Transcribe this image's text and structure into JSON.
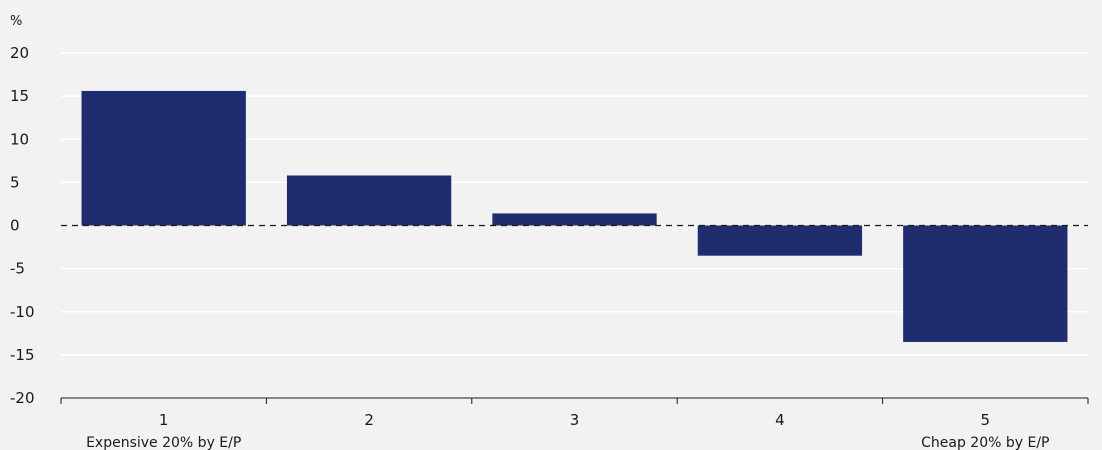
{
  "chart_data": {
    "type": "bar",
    "unit_label": "%",
    "categories": [
      "1",
      "2",
      "3",
      "4",
      "5"
    ],
    "values": [
      15.6,
      5.8,
      1.4,
      -3.5,
      -13.5
    ],
    "ylim": [
      -20,
      20
    ],
    "yticks": [
      20,
      15,
      10,
      5,
      0,
      -5,
      -10,
      -15,
      -20
    ],
    "grid": true,
    "zero_line": "dashed",
    "bar_color": "#1f2d6e",
    "category_notes": [
      {
        "category": "1",
        "text": "Expensive 20% by E/P"
      },
      {
        "category": "5",
        "text": "Cheap 20% by E/P"
      }
    ]
  }
}
